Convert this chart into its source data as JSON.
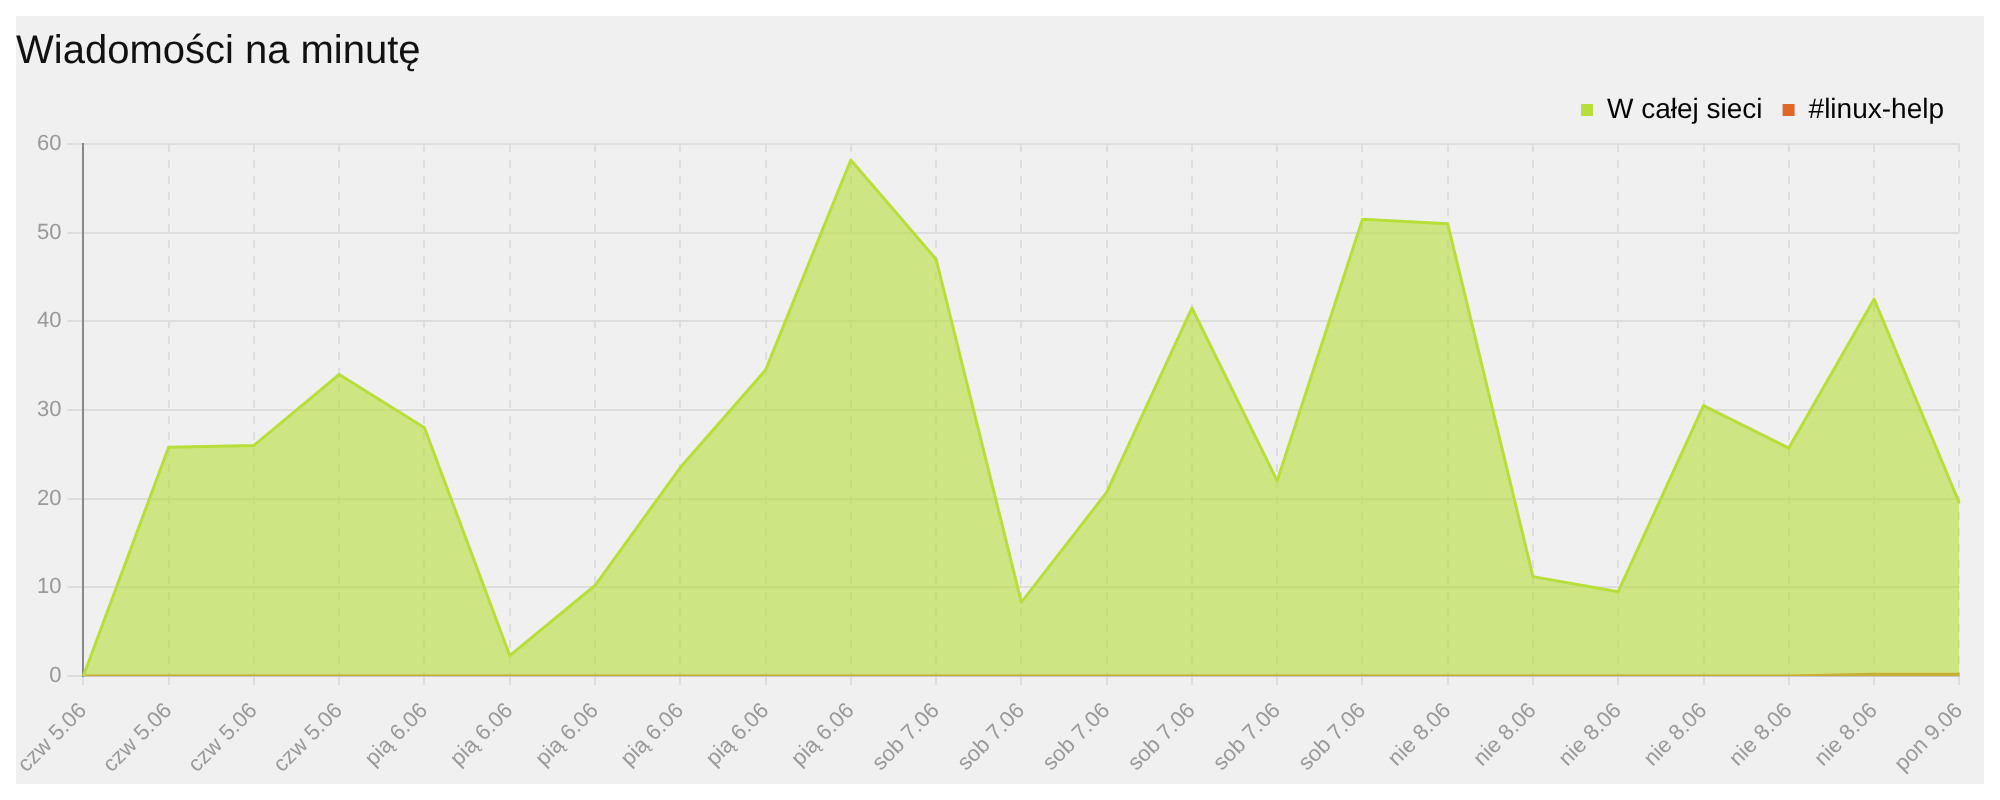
{
  "chart_data": {
    "type": "area",
    "title": "Wiadomości na minutę",
    "categories": [
      "czw 5.06",
      "czw 5.06",
      "czw 5.06",
      "czw 5.06",
      "pią 6.06",
      "pią 6.06",
      "pią 6.06",
      "pią 6.06",
      "pią 6.06",
      "pią 6.06",
      "sob 7.06",
      "sob 7.06",
      "sob 7.06",
      "sob 7.06",
      "sob 7.06",
      "sob 7.06",
      "nie 8.06",
      "nie 8.06",
      "nie 8.06",
      "nie 8.06",
      "nie 8.06",
      "nie 8.06",
      "pon 9.06"
    ],
    "series": [
      {
        "name": "W całej sieci",
        "color": "#b8de3a",
        "values": [
          0,
          25.8,
          26,
          34,
          28,
          2.3,
          10.2,
          23.5,
          34.5,
          58.2,
          47,
          8.3,
          20.7,
          41.5,
          22,
          51.5,
          51,
          11.2,
          9.5,
          30.5,
          25.7,
          42.5,
          19.5
        ]
      },
      {
        "name": "#linux-help",
        "color": "#e0662a",
        "values": [
          0,
          0,
          0,
          0,
          0,
          0,
          0,
          0,
          0,
          0,
          0,
          0,
          0,
          0,
          0,
          0,
          0,
          0,
          0,
          0,
          0,
          0.2,
          0.2
        ]
      }
    ],
    "ylim": [
      0,
      60
    ],
    "yticks": [
      0,
      10,
      20,
      30,
      40,
      50,
      60
    ],
    "grid": true,
    "legend": "top right",
    "marker": "none"
  }
}
